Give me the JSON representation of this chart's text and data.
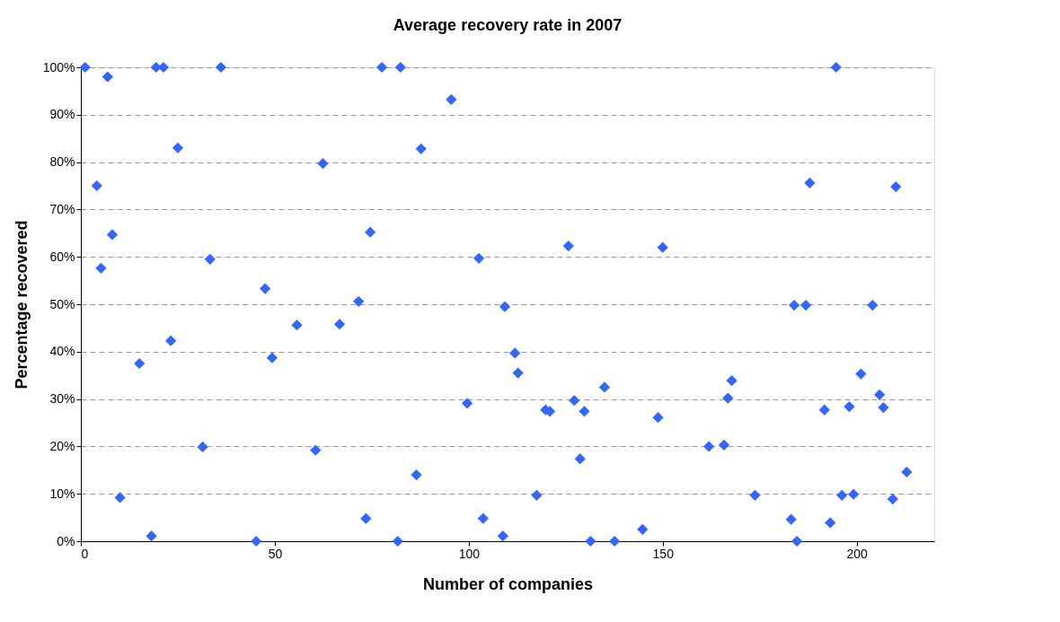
{
  "chart_data": {
    "type": "scatter",
    "title": "Average recovery rate in 2007",
    "xlabel": "Number of companies",
    "ylabel": "Percentage recovered",
    "xlim": [
      0,
      220
    ],
    "xticks": [
      0,
      50,
      100,
      150,
      200
    ],
    "ylim": [
      0,
      100
    ],
    "yticks": [
      {
        "value": 0,
        "label": "0%"
      },
      {
        "value": 10,
        "label": "10%"
      },
      {
        "value": 20,
        "label": "20%"
      },
      {
        "value": 30,
        "label": "30%"
      },
      {
        "value": 40,
        "label": "40%"
      },
      {
        "value": 50,
        "label": "50%"
      },
      {
        "value": 60,
        "label": "60%"
      },
      {
        "value": 70,
        "label": "70%"
      },
      {
        "value": 80,
        "label": "80%"
      },
      {
        "value": 90,
        "label": "90%"
      },
      {
        "value": 100,
        "label": "100%"
      }
    ],
    "grid": "y",
    "marker": "diamond",
    "series": [
      {
        "color": "#3366ff",
        "x": [
          1.1,
          4.1,
          5.2,
          6.9,
          8.1,
          10.1,
          15.1,
          18.2,
          19.4,
          21.3,
          23.2,
          25,
          31.4,
          33.3,
          36.1,
          45.2,
          47.5,
          49.3,
          55.7,
          60.5,
          62.4,
          66.7,
          71.6,
          73.5,
          74.6,
          77.6,
          81.7,
          82.4,
          86.5,
          87.7,
          95.5,
          99.6,
          102.6,
          103.7,
          108.8,
          109.3,
          111.9,
          112.7,
          117.5,
          119.8,
          120.9,
          125.7,
          127.2,
          128.7,
          129.8,
          131.4,
          135,
          137.6,
          144.8,
          148.8,
          150,
          161.9,
          165.8,
          166.8,
          167.8,
          173.8,
          183.1,
          183.9,
          184.6,
          186.9,
          187.9,
          191.7,
          193.2,
          194.7,
          196.2,
          198.1,
          199.2,
          201.1,
          204.1,
          205.9,
          206.9,
          209.3,
          210.1,
          212.9
        ],
        "values": [
          100,
          75,
          57.6,
          98,
          64.7,
          9.2,
          37.5,
          1.1,
          100,
          100,
          42.3,
          83,
          19.9,
          59.5,
          100,
          0,
          53.3,
          38.7,
          45.6,
          19.2,
          79.7,
          45.8,
          50.6,
          4.8,
          65.2,
          100,
          0,
          100,
          14,
          82.8,
          93.2,
          29.1,
          59.7,
          4.8,
          1.1,
          49.5,
          39.7,
          35.5,
          9.7,
          27.7,
          27.4,
          62.3,
          29.7,
          17.4,
          27.4,
          0,
          32.5,
          0,
          2.5,
          26.1,
          62,
          20,
          20.3,
          30.2,
          33.9,
          9.7,
          4.6,
          49.8,
          0,
          49.8,
          75.6,
          27.7,
          3.9,
          100,
          9.7,
          28.4,
          9.9,
          35.3,
          49.8,
          30.9,
          28.2,
          8.9,
          74.8,
          14.6
        ]
      }
    ]
  }
}
